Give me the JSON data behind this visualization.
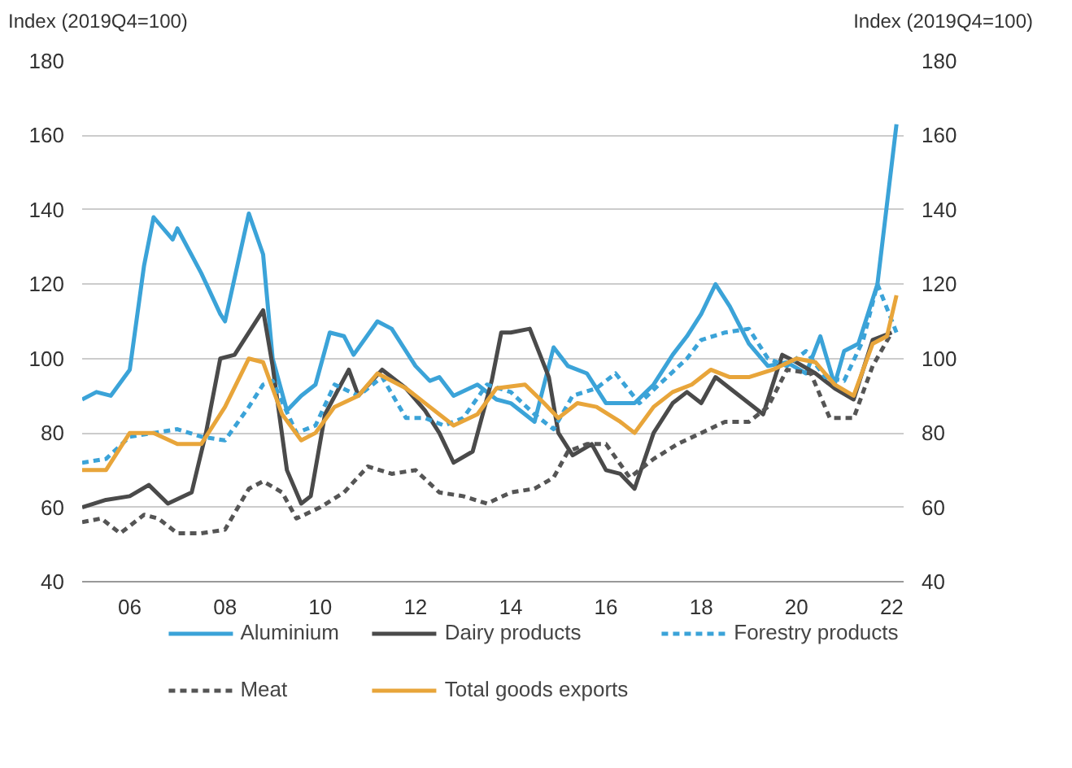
{
  "chart_data": {
    "type": "line",
    "ylabel": "Index (2019Q4=100)",
    "y2label": "Index (2019Q4=100)",
    "xlim": [
      2005,
      2022.25
    ],
    "xticks": [
      {
        "value": 2006,
        "label": "06"
      },
      {
        "value": 2008,
        "label": "08"
      },
      {
        "value": 2010,
        "label": "10"
      },
      {
        "value": 2012,
        "label": "12"
      },
      {
        "value": 2014,
        "label": "14"
      },
      {
        "value": 2016,
        "label": "16"
      },
      {
        "value": 2018,
        "label": "18"
      },
      {
        "value": 2020,
        "label": "20"
      },
      {
        "value": 2022,
        "label": "22"
      }
    ],
    "ylim": [
      40,
      180
    ],
    "yticks": [
      40,
      60,
      80,
      100,
      120,
      140,
      160,
      180
    ],
    "y2lim": [
      40,
      180
    ],
    "y2ticks": [
      40,
      60,
      80,
      100,
      120,
      140,
      160,
      180
    ],
    "grid": "y",
    "legend": "bottom",
    "series": [
      {
        "name": "Aluminium",
        "color": "#3ba3d8",
        "line_style": "solid",
        "x": [
          2005.0,
          2005.3,
          2005.6,
          2006.0,
          2006.3,
          2006.5,
          2006.9,
          2007.0,
          2007.5,
          2007.9,
          2008.0,
          2008.5,
          2008.8,
          2009.0,
          2009.3,
          2009.6,
          2009.9,
          2010.2,
          2010.5,
          2010.7,
          2011.2,
          2011.5,
          2012.0,
          2012.3,
          2012.5,
          2012.8,
          2013.3,
          2013.7,
          2014.0,
          2014.5,
          2014.9,
          2015.2,
          2015.6,
          2016.0,
          2016.6,
          2017.0,
          2017.4,
          2017.7,
          2018.0,
          2018.3,
          2018.6,
          2019.0,
          2019.4,
          2019.8,
          2020.2,
          2020.5,
          2020.8,
          2021.0,
          2021.3,
          2021.7,
          2022.1
        ],
        "values": [
          89,
          91,
          90,
          97,
          125,
          138,
          132,
          135,
          123,
          112,
          110,
          139,
          128,
          100,
          86,
          90,
          93,
          107,
          106,
          101,
          110,
          108,
          98,
          94,
          95,
          90,
          93,
          89,
          88,
          83,
          103,
          98,
          96,
          88,
          88,
          93,
          101,
          106,
          112,
          120,
          114,
          104,
          98,
          99,
          96,
          106,
          93,
          102,
          104,
          120,
          163
        ]
      },
      {
        "name": "Dairy products",
        "color": "#4a4a4a",
        "line_style": "solid",
        "x": [
          2005.0,
          2005.5,
          2006.0,
          2006.4,
          2006.8,
          2007.3,
          2007.6,
          2007.9,
          2008.2,
          2008.8,
          2009.0,
          2009.3,
          2009.6,
          2009.8,
          2010.1,
          2010.6,
          2010.8,
          2011.3,
          2011.8,
          2012.2,
          2012.5,
          2012.8,
          2013.2,
          2013.6,
          2013.8,
          2014.0,
          2014.4,
          2014.8,
          2015.0,
          2015.3,
          2015.7,
          2016.0,
          2016.3,
          2016.6,
          2017.0,
          2017.4,
          2017.7,
          2018.0,
          2018.3,
          2018.6,
          2019.0,
          2019.3,
          2019.7,
          2020.0,
          2020.4,
          2020.8,
          2021.2,
          2021.6,
          2022.0
        ],
        "values": [
          60,
          62,
          63,
          66,
          61,
          64,
          80,
          100,
          101,
          113,
          98,
          70,
          61,
          63,
          85,
          97,
          90,
          97,
          92,
          86,
          80,
          72,
          75,
          94,
          107,
          107,
          108,
          95,
          80,
          74,
          77,
          70,
          69,
          65,
          80,
          88,
          91,
          88,
          95,
          92,
          88,
          85,
          101,
          99,
          96,
          92,
          89,
          105,
          107
        ]
      },
      {
        "name": "Forestry products",
        "color": "#3ba3d8",
        "line_style": "dashed",
        "x": [
          2005.0,
          2005.5,
          2006.0,
          2006.5,
          2007.0,
          2007.5,
          2008.0,
          2008.5,
          2008.8,
          2009.0,
          2009.5,
          2009.9,
          2010.3,
          2010.8,
          2011.3,
          2011.8,
          2012.2,
          2012.6,
          2013.0,
          2013.5,
          2014.0,
          2014.5,
          2014.9,
          2015.3,
          2015.8,
          2016.2,
          2016.7,
          2017.2,
          2017.7,
          2018.0,
          2018.5,
          2019.0,
          2019.4,
          2019.8,
          2020.2,
          2020.6,
          2021.0,
          2021.4,
          2021.7,
          2022.1
        ],
        "values": [
          72,
          73,
          79,
          80,
          81,
          79,
          78,
          87,
          93,
          94,
          80,
          82,
          93,
          90,
          95,
          84,
          84,
          82,
          84,
          93,
          91,
          85,
          81,
          90,
          92,
          96,
          88,
          94,
          100,
          105,
          107,
          108,
          100,
          98,
          102,
          95,
          94,
          105,
          120,
          107
        ]
      },
      {
        "name": "Meat",
        "color": "#555555",
        "line_style": "dashed",
        "x": [
          2005.0,
          2005.4,
          2005.8,
          2006.3,
          2006.6,
          2007.0,
          2007.5,
          2008.0,
          2008.5,
          2008.8,
          2009.2,
          2009.5,
          2010.0,
          2010.5,
          2011.0,
          2011.5,
          2012.0,
          2012.5,
          2013.0,
          2013.5,
          2014.0,
          2014.5,
          2014.9,
          2015.2,
          2015.6,
          2016.0,
          2016.5,
          2017.0,
          2017.5,
          2018.0,
          2018.5,
          2019.0,
          2019.4,
          2019.8,
          2020.3,
          2020.7,
          2021.2,
          2021.6,
          2022.0
        ],
        "values": [
          56,
          57,
          53,
          58,
          57,
          53,
          53,
          54,
          65,
          67,
          64,
          57,
          60,
          64,
          71,
          69,
          70,
          64,
          63,
          61,
          64,
          65,
          68,
          75,
          77,
          77,
          68,
          73,
          77,
          80,
          83,
          83,
          87,
          97,
          96,
          84,
          84,
          98,
          107
        ]
      },
      {
        "name": "Total goods exports",
        "color": "#e8a53a",
        "line_style": "solid",
        "x": [
          2005.0,
          2005.5,
          2006.0,
          2006.5,
          2007.0,
          2007.5,
          2008.0,
          2008.5,
          2008.8,
          2009.2,
          2009.6,
          2009.9,
          2010.3,
          2010.8,
          2011.2,
          2011.8,
          2012.3,
          2012.8,
          2013.3,
          2013.7,
          2014.3,
          2014.7,
          2015.0,
          2015.4,
          2015.8,
          2016.3,
          2016.6,
          2017.0,
          2017.4,
          2017.8,
          2018.2,
          2018.6,
          2019.0,
          2019.5,
          2020.0,
          2020.4,
          2020.8,
          2021.2,
          2021.6,
          2021.9,
          2022.1
        ],
        "values": [
          70,
          70,
          80,
          80,
          77,
          77,
          87,
          100,
          99,
          85,
          78,
          80,
          87,
          90,
          96,
          92,
          87,
          82,
          85,
          92,
          93,
          88,
          84,
          88,
          87,
          83,
          80,
          87,
          91,
          93,
          97,
          95,
          95,
          97,
          100,
          99,
          93,
          90,
          104,
          106,
          117
        ]
      }
    ]
  }
}
